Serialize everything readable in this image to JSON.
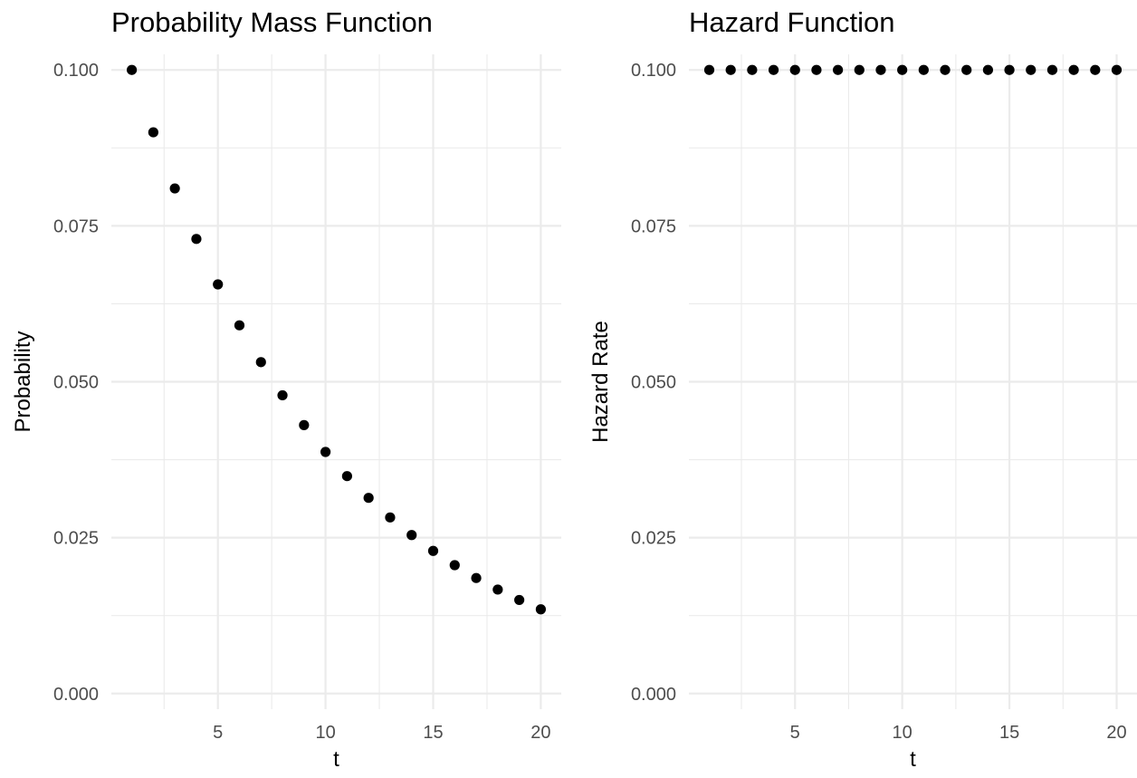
{
  "chart_data": [
    {
      "type": "scatter",
      "title": "Probability Mass Function",
      "xlabel": "t",
      "ylabel": "Probability",
      "x": [
        1,
        2,
        3,
        4,
        5,
        6,
        7,
        8,
        9,
        10,
        11,
        12,
        13,
        14,
        15,
        16,
        17,
        18,
        19,
        20
      ],
      "y": [
        0.1,
        0.09,
        0.081,
        0.0729,
        0.06561,
        0.059049,
        0.0531441,
        0.04782969,
        0.043046721,
        0.0387420489,
        0.03486784401,
        0.031381059609,
        0.0282429536481,
        0.02541865828329,
        0.022876792454961,
        0.0205891132094649,
        0.01853020188851841,
        0.01667718169966657,
        0.015009463529699911,
        0.01350851717672992
      ],
      "xticks": [
        "5",
        "10",
        "15",
        "20"
      ],
      "yticks": [
        "0.000",
        "0.025",
        "0.050",
        "0.075",
        "0.100"
      ],
      "xlim": [
        0.05,
        20.95
      ],
      "ylim": [
        -0.0025,
        0.1025
      ],
      "grid": true,
      "legend": "none"
    },
    {
      "type": "scatter",
      "title": "Hazard Function",
      "xlabel": "t",
      "ylabel": "Hazard Rate",
      "x": [
        1,
        2,
        3,
        4,
        5,
        6,
        7,
        8,
        9,
        10,
        11,
        12,
        13,
        14,
        15,
        16,
        17,
        18,
        19,
        20
      ],
      "y": [
        0.1,
        0.1,
        0.1,
        0.1,
        0.1,
        0.1,
        0.1,
        0.1,
        0.1,
        0.1,
        0.1,
        0.1,
        0.1,
        0.1,
        0.1,
        0.1,
        0.1,
        0.1,
        0.1,
        0.1
      ],
      "xticks": [
        "5",
        "10",
        "15",
        "20"
      ],
      "yticks": [
        "0.000",
        "0.025",
        "0.050",
        "0.075",
        "0.100"
      ],
      "xlim": [
        0.05,
        20.95
      ],
      "ylim": [
        -0.0025,
        0.1025
      ],
      "grid": true,
      "legend": "none"
    }
  ]
}
